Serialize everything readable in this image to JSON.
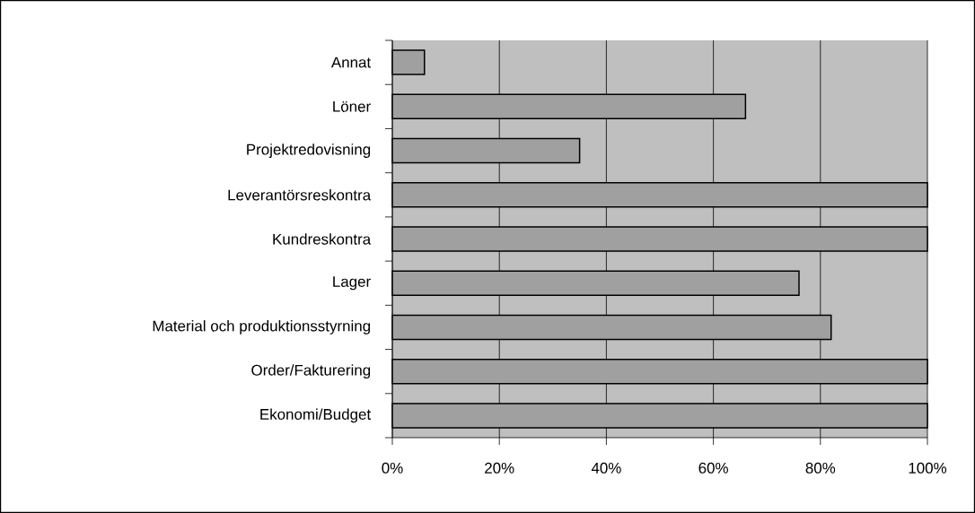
{
  "chart_data": {
    "type": "bar",
    "orientation": "horizontal",
    "categories": [
      "Annat",
      "Löner",
      "Projektredovisning",
      "Leverantörsreskontra",
      "Kundreskontra",
      "Lager",
      "Material och produktionsstyrning",
      "Order/Fakturering",
      "Ekonomi/Budget"
    ],
    "values": [
      6,
      66,
      35,
      100,
      100,
      76,
      82,
      100,
      100
    ],
    "color": "#a0a0a0",
    "xlim": [
      0,
      100
    ],
    "xticks": [
      {
        "value": 0,
        "label": "0%"
      },
      {
        "value": 20,
        "label": "20%"
      },
      {
        "value": 40,
        "label": "40%"
      },
      {
        "value": 60,
        "label": "60%"
      },
      {
        "value": 80,
        "label": "80%"
      },
      {
        "value": 100,
        "label": "100%"
      }
    ],
    "grid": "x"
  }
}
